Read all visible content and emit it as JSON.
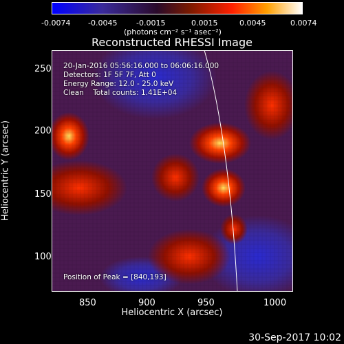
{
  "colorbar": {
    "ticks": [
      "-0.0074",
      "-0.0045",
      "-0.0015",
      "0.0015",
      "0.0045",
      "0.0074"
    ],
    "units": "(photons cm⁻² s⁻¹ asec⁻²)",
    "colors": [
      "#0000ff",
      "#3a2a9a",
      "#2a0a2a",
      "#7a1a00",
      "#ff2000",
      "#ffa000",
      "#ffffff"
    ]
  },
  "title": "Reconstructed RHESSI Image",
  "info": {
    "time_range": "20-Jan-2016 05:56:16.000 to 06:06:16.000",
    "detectors": "Detectors: 1F 5F 7F, Att 0",
    "energy": "Energy Range: 12.0 - 25.0 keV",
    "clean": "Clean    Total counts: 1.41E+04",
    "peak": "Position of Peak = [840,193]"
  },
  "axes": {
    "xlabel": "Heliocentric X (arcsec)",
    "ylabel": "Heliocentric Y (arcsec)",
    "xticks": [
      "850",
      "900",
      "950",
      "1000"
    ],
    "yticks": [
      "250",
      "200",
      "150",
      "100"
    ]
  },
  "footer": "30-Sep-2017 10:02"
}
